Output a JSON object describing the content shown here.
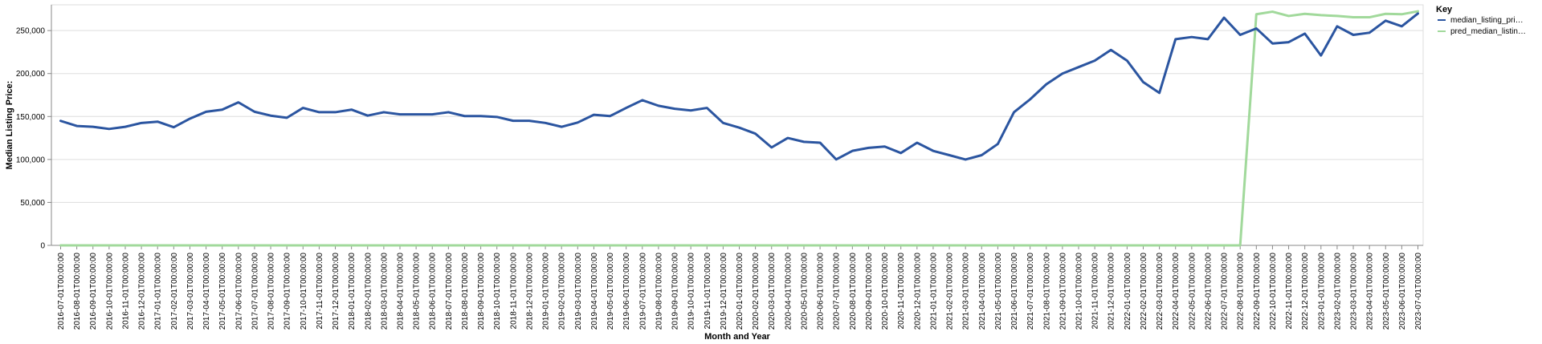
{
  "chart_data": {
    "type": "line",
    "title": "",
    "xlabel": "Month and Year",
    "ylabel": "Median Listing Price:",
    "ylim": [
      0,
      280000
    ],
    "yticks": [
      0,
      50000,
      100000,
      150000,
      200000,
      250000
    ],
    "ytick_labels": [
      "0",
      "50,000",
      "100,000",
      "150,000",
      "200,000",
      "250,000"
    ],
    "grid": true,
    "legend": {
      "title": "Key",
      "placement": "top-right",
      "entries": [
        "median_listing_pri…",
        "pred_median_listin…"
      ]
    },
    "x": [
      "2016-07-01T00:00:00",
      "2016-08-01T00:00:00",
      "2016-09-01T00:00:00",
      "2016-10-01T00:00:00",
      "2016-11-01T00:00:00",
      "2016-12-01T00:00:00",
      "2017-01-01T00:00:00",
      "2017-02-01T00:00:00",
      "2017-03-01T00:00:00",
      "2017-04-01T00:00:00",
      "2017-05-01T00:00:00",
      "2017-06-01T00:00:00",
      "2017-07-01T00:00:00",
      "2017-08-01T00:00:00",
      "2017-09-01T00:00:00",
      "2017-10-01T00:00:00",
      "2017-11-01T00:00:00",
      "2017-12-01T00:00:00",
      "2018-01-01T00:00:00",
      "2018-02-01T00:00:00",
      "2018-03-01T00:00:00",
      "2018-04-01T00:00:00",
      "2018-05-01T00:00:00",
      "2018-06-01T00:00:00",
      "2018-07-01T00:00:00",
      "2018-08-01T00:00:00",
      "2018-09-01T00:00:00",
      "2018-10-01T00:00:00",
      "2018-11-01T00:00:00",
      "2018-12-01T00:00:00",
      "2019-01-01T00:00:00",
      "2019-02-01T00:00:00",
      "2019-03-01T00:00:00",
      "2019-04-01T00:00:00",
      "2019-05-01T00:00:00",
      "2019-06-01T00:00:00",
      "2019-07-01T00:00:00",
      "2019-08-01T00:00:00",
      "2019-09-01T00:00:00",
      "2019-10-01T00:00:00",
      "2019-11-01T00:00:00",
      "2019-12-01T00:00:00",
      "2020-01-01T00:00:00",
      "2020-02-01T00:00:00",
      "2020-03-01T00:00:00",
      "2020-04-01T00:00:00",
      "2020-05-01T00:00:00",
      "2020-06-01T00:00:00",
      "2020-07-01T00:00:00",
      "2020-08-01T00:00:00",
      "2020-09-01T00:00:00",
      "2020-10-01T00:00:00",
      "2020-11-01T00:00:00",
      "2020-12-01T00:00:00",
      "2021-01-01T00:00:00",
      "2021-02-01T00:00:00",
      "2021-03-01T00:00:00",
      "2021-04-01T00:00:00",
      "2021-05-01T00:00:00",
      "2021-06-01T00:00:00",
      "2021-07-01T00:00:00",
      "2021-08-01T00:00:00",
      "2021-09-01T00:00:00",
      "2021-10-01T00:00:00",
      "2021-11-01T00:00:00",
      "2021-12-01T00:00:00",
      "2022-01-01T00:00:00",
      "2022-02-01T00:00:00",
      "2022-03-01T00:00:00",
      "2022-04-01T00:00:00",
      "2022-05-01T00:00:00",
      "2022-06-01T00:00:00",
      "2022-07-01T00:00:00",
      "2022-08-01T00:00:00",
      "2022-09-01T00:00:00",
      "2022-10-01T00:00:00",
      "2022-11-01T00:00:00",
      "2022-12-01T00:00:00",
      "2023-01-01T00:00:00",
      "2023-02-01T00:00:00",
      "2023-03-01T00:00:00",
      "2023-04-01T00:00:00",
      "2023-05-01T00:00:00",
      "2023-06-01T00:00:00",
      "2023-07-01T00:00:00"
    ],
    "series": [
      {
        "name": "median_listing_pri…",
        "color": "#2b55a0",
        "values": [
          144900,
          139000,
          138000,
          135500,
          138000,
          142500,
          144000,
          137500,
          147500,
          155500,
          158000,
          166500,
          155500,
          151000,
          148500,
          160000,
          155000,
          155000,
          158000,
          151000,
          155000,
          152500,
          152500,
          152500,
          155000,
          150500,
          150500,
          149500,
          145000,
          145000,
          142500,
          138000,
          143000,
          152000,
          150500,
          160000,
          169000,
          162500,
          159000,
          157000,
          160000,
          142500,
          137000,
          130000,
          114000,
          125000,
          120500,
          119500,
          100000,
          110000,
          113500,
          115000,
          107500,
          119500,
          110000,
          105000,
          99900,
          105000,
          118000,
          155000,
          170000,
          187500,
          200000,
          207500,
          215000,
          227500,
          215000,
          190000,
          177500,
          240000,
          242500,
          240000,
          265000,
          245000,
          252500,
          235000,
          236500,
          246500,
          221000,
          255000,
          245000,
          247500,
          261500,
          255000,
          269900
        ]
      },
      {
        "name": "pred_median_listin…",
        "color": "#a1d99b",
        "values": [
          0,
          0,
          0,
          0,
          0,
          0,
          0,
          0,
          0,
          0,
          0,
          0,
          0,
          0,
          0,
          0,
          0,
          0,
          0,
          0,
          0,
          0,
          0,
          0,
          0,
          0,
          0,
          0,
          0,
          0,
          0,
          0,
          0,
          0,
          0,
          0,
          0,
          0,
          0,
          0,
          0,
          0,
          0,
          0,
          0,
          0,
          0,
          0,
          0,
          0,
          0,
          0,
          0,
          0,
          0,
          0,
          0,
          0,
          0,
          0,
          0,
          0,
          0,
          0,
          0,
          0,
          0,
          0,
          0,
          0,
          0,
          0,
          0,
          0,
          269000,
          272000,
          267000,
          269500,
          268000,
          267000,
          265500,
          265500,
          269500,
          269000,
          272500
        ]
      }
    ]
  }
}
